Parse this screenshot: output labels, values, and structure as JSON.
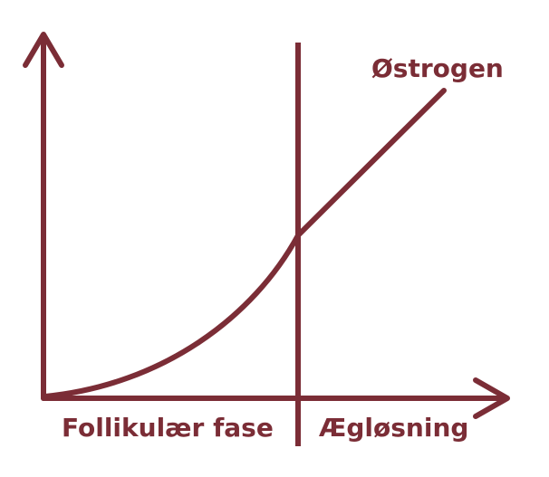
{
  "colors": {
    "stroke": "#7b2d36",
    "background": "#ffffff"
  },
  "curve": {
    "label": "Østrogen"
  },
  "phases": [
    {
      "label": "Follikulær fase"
    },
    {
      "label": "Ægløsning"
    }
  ]
}
